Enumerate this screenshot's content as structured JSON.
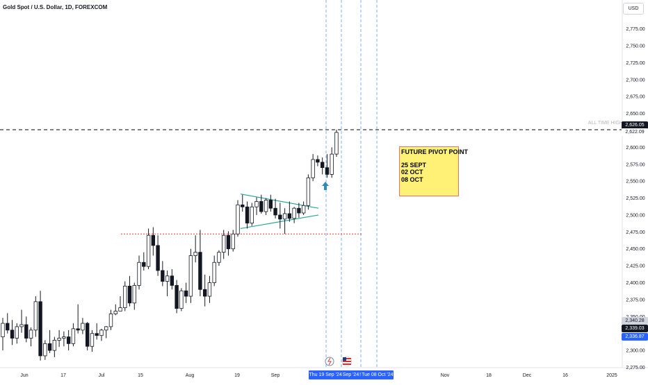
{
  "header": {
    "symbol_title": "Gold Spot / U.S. Dollar, 1D, FOREXCOM",
    "currency_button": "USD"
  },
  "price_axis": {
    "ticks": [
      "2,775.00",
      "2,750.00",
      "2,725.00",
      "2,700.00",
      "2,675.00",
      "2,650.00",
      "2,600.00",
      "2,575.00",
      "2,550.00",
      "2,525.00",
      "2,500.00",
      "2,475.00",
      "2,450.00",
      "2,425.00",
      "2,400.00",
      "2,375.00",
      "2,350.00",
      "2,300.00",
      "2,275.00"
    ],
    "labels": {
      "high": {
        "text": "2,626.05",
        "color": "#131722"
      },
      "last": {
        "text": "2,622.09"
      },
      "a": {
        "text": "2,340.28",
        "color": "#9598a1"
      },
      "b": {
        "text": "2,339.03",
        "color": "#131722"
      },
      "c": {
        "text": "2,336.87",
        "color": "#2962ff"
      }
    },
    "ath_label": "ALL TIME HIGH"
  },
  "time_axis": {
    "ticks": [
      "Jun",
      "17",
      "Jul",
      "15",
      "Aug",
      "19",
      "Sep",
      "Nov",
      "18",
      "Dec",
      "16",
      "2025"
    ],
    "selected_range": {
      "start": "Thu 19 Sep '24",
      "mid": "Sep '24",
      "sep": "!",
      "end": "Tue 08 Oct '24"
    }
  },
  "annotation": {
    "title": "FUTURE PIVOT POINT",
    "lines": [
      "25 SEPT",
      "02 OCT",
      "08 OCT"
    ]
  },
  "chart_data": {
    "type": "candlestick",
    "title": "Gold Spot / U.S. Dollar, 1D, FOREXCOM",
    "ylim": [
      2270,
      2790
    ],
    "resistance_level": 2626.05,
    "support_level": 2472,
    "candles": [
      {
        "o": 2320,
        "h": 2348,
        "l": 2300,
        "c": 2340
      },
      {
        "o": 2340,
        "h": 2355,
        "l": 2325,
        "c": 2330
      },
      {
        "o": 2330,
        "h": 2345,
        "l": 2308,
        "c": 2318
      },
      {
        "o": 2318,
        "h": 2340,
        "l": 2310,
        "c": 2335
      },
      {
        "o": 2335,
        "h": 2360,
        "l": 2326,
        "c": 2338
      },
      {
        "o": 2338,
        "h": 2350,
        "l": 2312,
        "c": 2318
      },
      {
        "o": 2318,
        "h": 2334,
        "l": 2306,
        "c": 2330
      },
      {
        "o": 2330,
        "h": 2380,
        "l": 2320,
        "c": 2372
      },
      {
        "o": 2372,
        "h": 2388,
        "l": 2285,
        "c": 2292
      },
      {
        "o": 2292,
        "h": 2315,
        "l": 2286,
        "c": 2310
      },
      {
        "o": 2310,
        "h": 2330,
        "l": 2296,
        "c": 2300
      },
      {
        "o": 2300,
        "h": 2320,
        "l": 2290,
        "c": 2315
      },
      {
        "o": 2315,
        "h": 2330,
        "l": 2305,
        "c": 2318
      },
      {
        "o": 2318,
        "h": 2328,
        "l": 2306,
        "c": 2320
      },
      {
        "o": 2320,
        "h": 2330,
        "l": 2300,
        "c": 2310
      },
      {
        "o": 2310,
        "h": 2340,
        "l": 2306,
        "c": 2332
      },
      {
        "o": 2332,
        "h": 2368,
        "l": 2325,
        "c": 2330
      },
      {
        "o": 2330,
        "h": 2348,
        "l": 2324,
        "c": 2340
      },
      {
        "o": 2340,
        "h": 2342,
        "l": 2300,
        "c": 2306
      },
      {
        "o": 2306,
        "h": 2330,
        "l": 2298,
        "c": 2325
      },
      {
        "o": 2325,
        "h": 2340,
        "l": 2316,
        "c": 2322
      },
      {
        "o": 2322,
        "h": 2332,
        "l": 2314,
        "c": 2330
      },
      {
        "o": 2330,
        "h": 2336,
        "l": 2318,
        "c": 2335
      },
      {
        "o": 2335,
        "h": 2360,
        "l": 2330,
        "c": 2354
      },
      {
        "o": 2354,
        "h": 2368,
        "l": 2352,
        "c": 2358
      },
      {
        "o": 2358,
        "h": 2380,
        "l": 2360,
        "c": 2363
      },
      {
        "o": 2363,
        "h": 2402,
        "l": 2358,
        "c": 2395
      },
      {
        "o": 2395,
        "h": 2410,
        "l": 2365,
        "c": 2370
      },
      {
        "o": 2370,
        "h": 2400,
        "l": 2360,
        "c": 2396
      },
      {
        "o": 2396,
        "h": 2440,
        "l": 2390,
        "c": 2430
      },
      {
        "o": 2430,
        "h": 2445,
        "l": 2418,
        "c": 2424
      },
      {
        "o": 2424,
        "h": 2480,
        "l": 2420,
        "c": 2470
      },
      {
        "o": 2470,
        "h": 2482,
        "l": 2440,
        "c": 2455
      },
      {
        "o": 2455,
        "h": 2470,
        "l": 2410,
        "c": 2418
      },
      {
        "o": 2418,
        "h": 2432,
        "l": 2395,
        "c": 2402
      },
      {
        "o": 2402,
        "h": 2418,
        "l": 2380,
        "c": 2410
      },
      {
        "o": 2410,
        "h": 2420,
        "l": 2390,
        "c": 2396
      },
      {
        "o": 2396,
        "h": 2404,
        "l": 2355,
        "c": 2362
      },
      {
        "o": 2362,
        "h": 2392,
        "l": 2358,
        "c": 2388
      },
      {
        "o": 2388,
        "h": 2400,
        "l": 2370,
        "c": 2380
      },
      {
        "o": 2380,
        "h": 2450,
        "l": 2370,
        "c": 2440
      },
      {
        "o": 2440,
        "h": 2470,
        "l": 2430,
        "c": 2445
      },
      {
        "o": 2445,
        "h": 2478,
        "l": 2380,
        "c": 2390
      },
      {
        "o": 2390,
        "h": 2412,
        "l": 2365,
        "c": 2380
      },
      {
        "o": 2380,
        "h": 2410,
        "l": 2370,
        "c": 2400
      },
      {
        "o": 2400,
        "h": 2440,
        "l": 2395,
        "c": 2430
      },
      {
        "o": 2430,
        "h": 2448,
        "l": 2425,
        "c": 2445
      },
      {
        "o": 2445,
        "h": 2478,
        "l": 2435,
        "c": 2470
      },
      {
        "o": 2470,
        "h": 2476,
        "l": 2440,
        "c": 2450
      },
      {
        "o": 2450,
        "h": 2478,
        "l": 2446,
        "c": 2472
      },
      {
        "o": 2472,
        "h": 2522,
        "l": 2468,
        "c": 2515
      },
      {
        "o": 2515,
        "h": 2530,
        "l": 2505,
        "c": 2512
      },
      {
        "o": 2512,
        "h": 2520,
        "l": 2480,
        "c": 2488
      },
      {
        "o": 2488,
        "h": 2518,
        "l": 2484,
        "c": 2512
      },
      {
        "o": 2512,
        "h": 2526,
        "l": 2500,
        "c": 2520
      },
      {
        "o": 2520,
        "h": 2530,
        "l": 2502,
        "c": 2505
      },
      {
        "o": 2505,
        "h": 2525,
        "l": 2500,
        "c": 2522
      },
      {
        "o": 2522,
        "h": 2530,
        "l": 2505,
        "c": 2510
      },
      {
        "o": 2510,
        "h": 2524,
        "l": 2495,
        "c": 2500
      },
      {
        "o": 2500,
        "h": 2518,
        "l": 2480,
        "c": 2494
      },
      {
        "o": 2494,
        "h": 2510,
        "l": 2472,
        "c": 2502
      },
      {
        "o": 2502,
        "h": 2520,
        "l": 2490,
        "c": 2495
      },
      {
        "o": 2495,
        "h": 2512,
        "l": 2488,
        "c": 2510
      },
      {
        "o": 2510,
        "h": 2518,
        "l": 2496,
        "c": 2503
      },
      {
        "o": 2503,
        "h": 2520,
        "l": 2500,
        "c": 2514
      },
      {
        "o": 2514,
        "h": 2560,
        "l": 2508,
        "c": 2555
      },
      {
        "o": 2555,
        "h": 2590,
        "l": 2550,
        "c": 2582
      },
      {
        "o": 2582,
        "h": 2588,
        "l": 2572,
        "c": 2578
      },
      {
        "o": 2578,
        "h": 2585,
        "l": 2560,
        "c": 2570
      },
      {
        "o": 2570,
        "h": 2590,
        "l": 2555,
        "c": 2560
      },
      {
        "o": 2560,
        "h": 2600,
        "l": 2555,
        "c": 2590
      },
      {
        "o": 2590,
        "h": 2626.05,
        "l": 2586,
        "c": 2622
      }
    ]
  }
}
